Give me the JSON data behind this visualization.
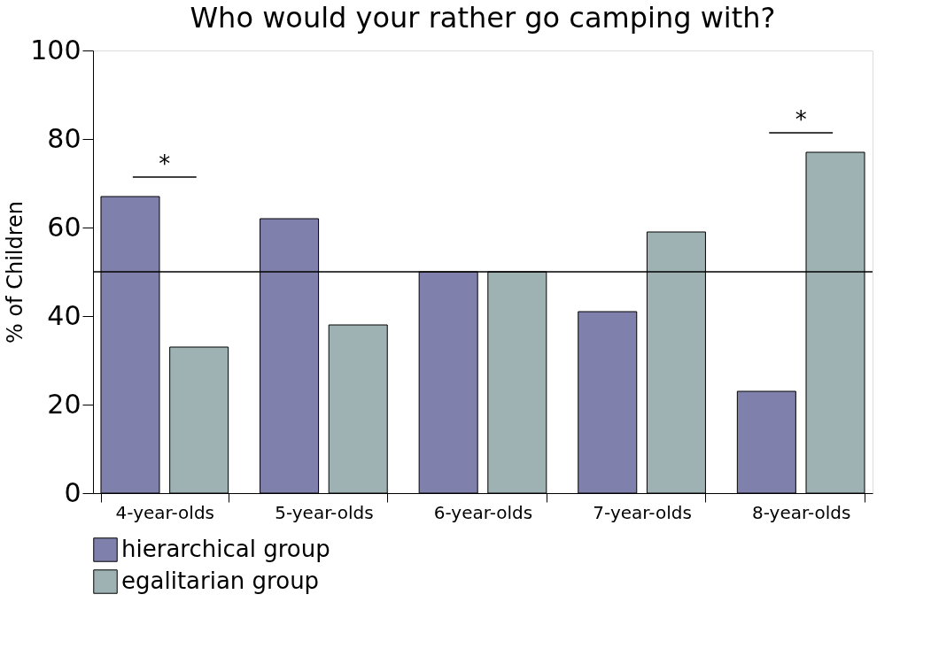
{
  "chart_data": {
    "type": "bar",
    "title": "Who would your rather go camping with?",
    "ylabel": "% of Children",
    "categories": [
      "4-year-olds",
      "5-year-olds",
      "6-year-olds",
      "7-year-olds",
      "8-year-olds"
    ],
    "series": [
      {
        "name": "hierarchical group",
        "color": "#8080ac",
        "values": [
          67,
          62,
          50,
          41,
          23
        ]
      },
      {
        "name": "egalitarian group",
        "color": "#9fb2b3",
        "values": [
          33,
          38,
          50,
          59,
          77
        ]
      }
    ],
    "ylim": [
      0,
      100
    ],
    "yticks": [
      0,
      20,
      40,
      60,
      80,
      100
    ],
    "grid": false,
    "legend": "bottom",
    "ref_lines": [
      {
        "axis": "y",
        "value": 50,
        "color": "#000000"
      }
    ],
    "annotations": [
      "*",
      "*"
    ]
  }
}
